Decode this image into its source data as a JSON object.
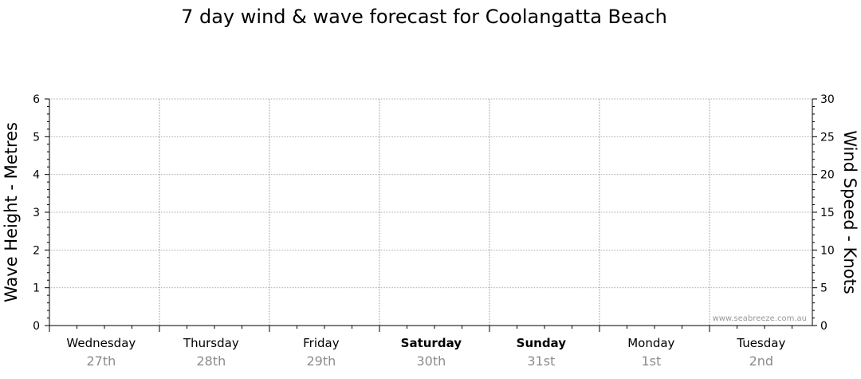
{
  "chart_data": {
    "type": "line",
    "title": "7 day wind & wave forecast for Coolangatta Beach",
    "ylabel_left": "Wave Height - Metres",
    "ylabel_right": "Wind Speed - Knots",
    "ylim_left": [
      0,
      6
    ],
    "ylim_right": [
      0,
      30
    ],
    "yticks_left": [
      "0",
      "1",
      "2",
      "3",
      "4",
      "5",
      "6"
    ],
    "yticks_right": [
      "0",
      "5",
      "10",
      "15",
      "20",
      "25",
      "30"
    ],
    "days": [
      {
        "day": "Wednesday",
        "date": "27th",
        "bold": false
      },
      {
        "day": "Thursday",
        "date": "28th",
        "bold": false
      },
      {
        "day": "Friday",
        "date": "29th",
        "bold": false
      },
      {
        "day": "Saturday",
        "date": "30th",
        "bold": true
      },
      {
        "day": "Sunday",
        "date": "31st",
        "bold": true
      },
      {
        "day": "Monday",
        "date": "1st",
        "bold": false
      },
      {
        "day": "Tuesday",
        "date": "2nd",
        "bold": false
      }
    ],
    "series": [],
    "grid": true,
    "watermark": "www.seabreeze.com.au"
  }
}
